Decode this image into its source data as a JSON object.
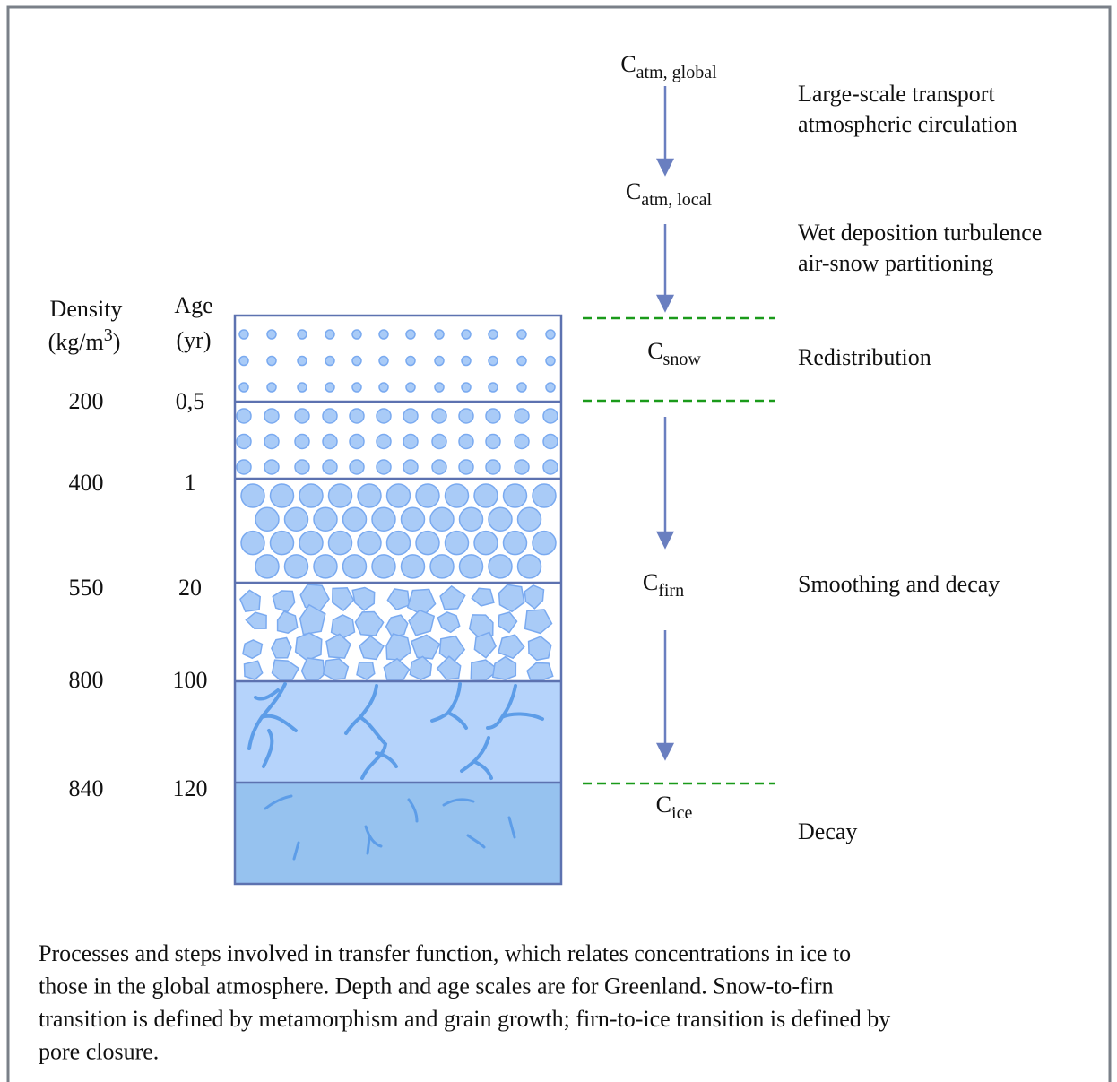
{
  "header": {
    "density": "Density",
    "density_unit": {
      "base": "(kg/m",
      "sup": "3",
      "end": ")"
    },
    "age": "Age",
    "age_unit": "(yr)"
  },
  "layers": [
    {
      "density": "200",
      "age": "0,5"
    },
    {
      "density": "400",
      "age": "1"
    },
    {
      "density": "550",
      "age": "20"
    },
    {
      "density": "800",
      "age": "100"
    },
    {
      "density": "840",
      "age": "120"
    }
  ],
  "concentrations": [
    {
      "base": "C",
      "sub": "atm, global"
    },
    {
      "base": "C",
      "sub": "atm, local"
    },
    {
      "base": "C",
      "sub": "snow"
    },
    {
      "base": "C",
      "sub": "firn"
    },
    {
      "base": "C",
      "sub": "ice"
    }
  ],
  "processes": [
    [
      "Large-scale transport",
      "atmospheric circulation"
    ],
    [
      "Wet deposition turbulence",
      "air-snow partitioning"
    ],
    [
      "Redistribution"
    ],
    [
      "Smoothing and decay"
    ],
    [
      "Decay"
    ]
  ],
  "caption": [
    "Processes and steps involved in transfer function, which relates concentrations in ice to",
    "those in the global atmosphere. Depth and age scales are for Greenland. Snow-to-firn",
    "transition is defined by metamorphism and grain growth; firn-to-ice transition is defined by",
    "pore closure."
  ]
}
